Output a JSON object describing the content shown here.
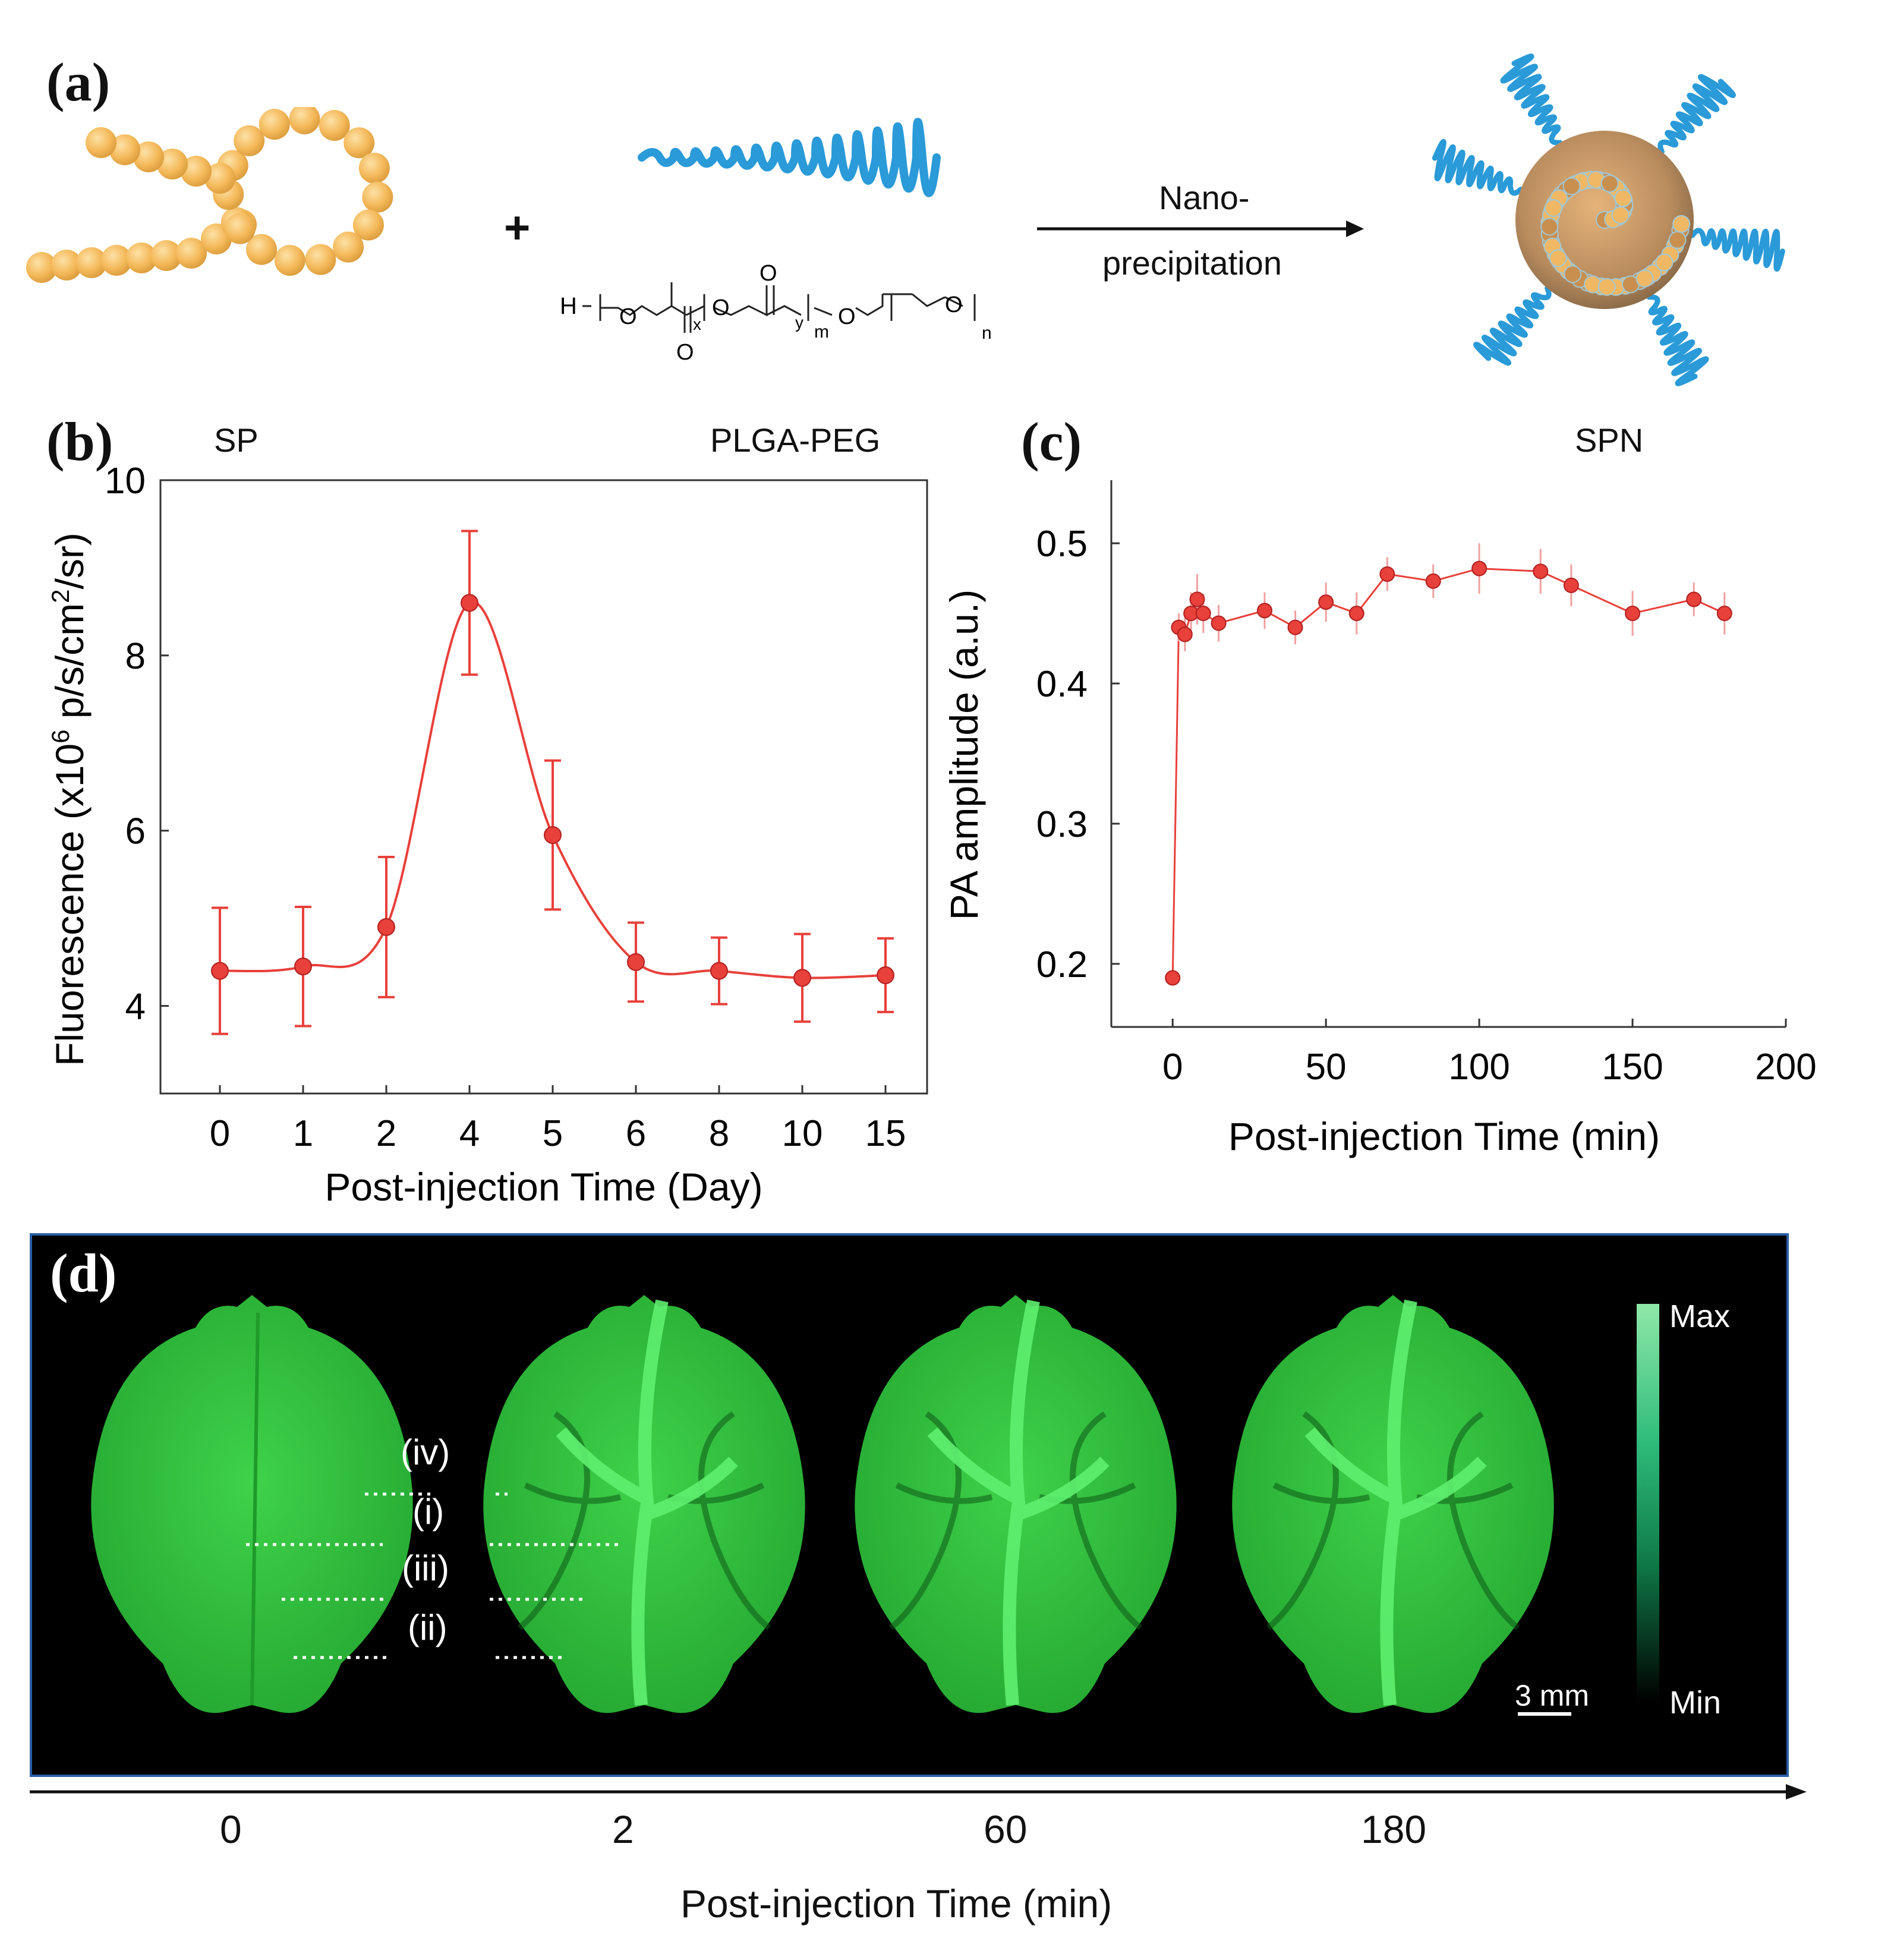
{
  "panel_a": {
    "letter": "(a)",
    "plus": "+",
    "arrow_label_line1": "Nano-",
    "arrow_label_line2": "precipitation",
    "label_sp": "SP",
    "label_plga_peg": "PLGA-PEG",
    "label_spn": "SPN",
    "chem": {
      "h": "H",
      "x": "x",
      "y": "y",
      "m": "m",
      "n": "n",
      "o": "O"
    }
  },
  "colors": {
    "accent_red": "#e8403a",
    "polymer_blue": "#2a9ad8",
    "bead_orange": "#f4b95a",
    "brain_green": "#2fc23a",
    "panel_bg": "#000000"
  },
  "chart_data": [
    {
      "type": "line",
      "panel": "(b)",
      "categories": [
        "0",
        "1",
        "2",
        "4",
        "5",
        "6",
        "8",
        "10",
        "15"
      ],
      "values": [
        4.4,
        4.45,
        4.9,
        8.6,
        5.95,
        4.5,
        4.4,
        4.32,
        4.35
      ],
      "errors": [
        0.72,
        0.68,
        0.8,
        0.82,
        0.85,
        0.45,
        0.38,
        0.5,
        0.42
      ],
      "xlabel": "Post-injection Time (Day)",
      "ylabel_parts": {
        "pre": "Fluorescence (x10",
        "sup1": "6",
        "mid": " p/s/cm",
        "sup2": "2",
        "post": "/sr)"
      },
      "ylim": [
        3,
        10
      ],
      "yticks": [
        "4",
        "6",
        "8",
        "10"
      ]
    },
    {
      "type": "scatter-line",
      "panel": "(c)",
      "x": [
        0,
        2,
        4,
        6,
        8,
        10,
        15,
        30,
        40,
        50,
        60,
        70,
        85,
        100,
        120,
        130,
        150,
        170,
        180
      ],
      "y": [
        0.19,
        0.44,
        0.435,
        0.45,
        0.46,
        0.45,
        0.443,
        0.452,
        0.44,
        0.458,
        0.45,
        0.478,
        0.473,
        0.482,
        0.48,
        0.47,
        0.45,
        0.46,
        0.45
      ],
      "errors": [
        0.004,
        0.01,
        0.012,
        0.015,
        0.018,
        0.014,
        0.013,
        0.013,
        0.012,
        0.014,
        0.015,
        0.012,
        0.012,
        0.018,
        0.016,
        0.015,
        0.016,
        0.012,
        0.015
      ],
      "xlabel": "Post-injection Time (min)",
      "ylabel": "PA amplitude (a.u.)",
      "xlim": [
        -20,
        200
      ],
      "ylim": [
        0.155,
        0.545
      ],
      "xticks": [
        "0",
        "50",
        "100",
        "150",
        "200"
      ],
      "yticks": [
        "0.2",
        "0.3",
        "0.4",
        "0.5"
      ]
    }
  ],
  "panel_d": {
    "letter": "(d)",
    "vessel_labels": [
      "(iv)",
      "(i)",
      "(iii)",
      "(ii)"
    ],
    "colorbar_max": "Max",
    "colorbar_min": "Min",
    "scale_bar": "3 mm",
    "timepoints": [
      "0",
      "2",
      "60",
      "180"
    ],
    "xlabel": "Post-injection Time (min)"
  }
}
